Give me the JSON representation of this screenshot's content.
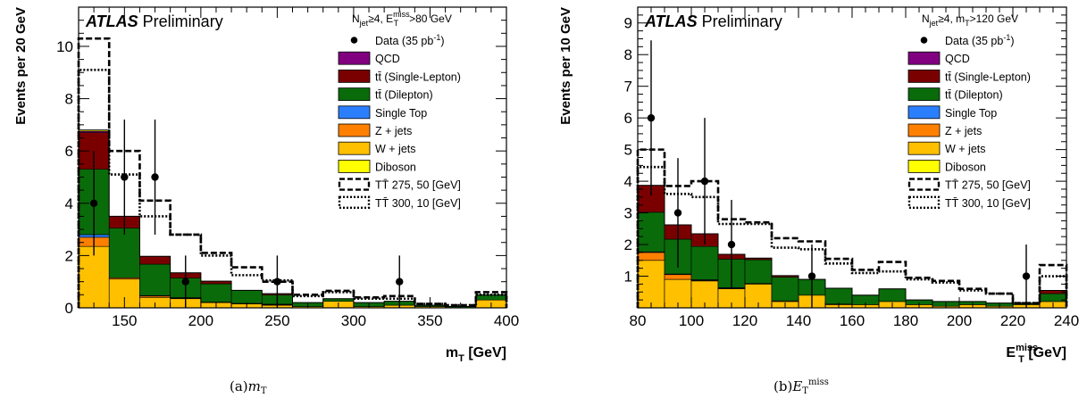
{
  "colors": {
    "qcd": "#800080",
    "ttbar_single_lepton": "#7a0000",
    "ttbar_dilepton": "#0a6b0a",
    "single_top": "#2b7fff",
    "z_jets": "#ff8000",
    "w_jets": "#ffc000",
    "diboson": "#ffff00",
    "data": "#000000"
  },
  "chart_data": [
    {
      "type": "bar",
      "panel_label": "(a)",
      "caption_var": "m",
      "caption_sub": "T",
      "experiment": "ATLAS",
      "status": "Preliminary",
      "selection": {
        "main": "N",
        "sub1": "jet",
        "mid": "≥4, E",
        "sub2": "T",
        "sup2": "miss",
        "tail": ">80 GeV"
      },
      "ylabel": "Events per 20 GeV",
      "xlabel_main": "m",
      "xlabel_sub": "T",
      "xlabel_tail": " [GeV]",
      "xlim": [
        120,
        400
      ],
      "ylim": [
        0,
        11.5
      ],
      "xticks": [
        150,
        200,
        250,
        300,
        350,
        400
      ],
      "yticks": [
        0,
        2,
        4,
        6,
        8,
        10
      ],
      "bin_edges": [
        120,
        140,
        160,
        180,
        200,
        220,
        240,
        260,
        280,
        300,
        320,
        340,
        360,
        380,
        400
      ],
      "stack": [
        {
          "key": "w_jets",
          "values": [
            2.35,
            1.1,
            0.4,
            0.35,
            0.2,
            0.15,
            0.1,
            0.05,
            0.25,
            0.05,
            0.1,
            0.05,
            0.0,
            0.3
          ]
        },
        {
          "key": "z_jets",
          "values": [
            0.35,
            0.05,
            0.05,
            0.02,
            0.02,
            0.02,
            0.02,
            0.0,
            0.0,
            0.0,
            0.0,
            0.0,
            0.0,
            0.0
          ]
        },
        {
          "key": "single_top",
          "values": [
            0.1,
            0.0,
            0.02,
            0.02,
            0.0,
            0.0,
            0.02,
            0.0,
            0.0,
            0.0,
            0.0,
            0.0,
            0.0,
            0.0
          ]
        },
        {
          "key": "ttbar_dilepton",
          "values": [
            2.5,
            1.9,
            1.2,
            0.75,
            0.7,
            0.5,
            0.35,
            0.15,
            0.1,
            0.15,
            0.15,
            0.05,
            0.05,
            0.2
          ]
        },
        {
          "key": "ttbar_single_lepton",
          "values": [
            1.4,
            0.45,
            0.3,
            0.2,
            0.1,
            0.0,
            0.05,
            0.0,
            0.0,
            0.0,
            0.0,
            0.0,
            0.0,
            0.0
          ]
        },
        {
          "key": "qcd",
          "values": [
            0.05,
            0.0,
            0.0,
            0.0,
            0.0,
            0.0,
            0.0,
            0.0,
            0.0,
            0.0,
            0.0,
            0.0,
            0.0,
            0.0
          ]
        },
        {
          "key": "diboson",
          "values": [
            0.05,
            0.0,
            0.0,
            0.0,
            0.0,
            0.0,
            0.0,
            0.0,
            0.0,
            0.0,
            0.0,
            0.0,
            0.0,
            0.0
          ]
        }
      ],
      "signals": [
        {
          "key": "tt_275_50",
          "style": "dashed",
          "values": [
            10.3,
            6.0,
            4.1,
            2.8,
            2.1,
            1.55,
            1.0,
            0.5,
            0.65,
            0.4,
            0.45,
            0.15,
            0.1,
            0.6
          ]
        },
        {
          "key": "tt_300_10",
          "style": "dotted",
          "values": [
            9.1,
            5.1,
            3.5,
            2.8,
            2.0,
            1.25,
            1.05,
            0.45,
            0.6,
            0.35,
            0.35,
            0.15,
            0.1,
            0.5
          ]
        }
      ],
      "data_points": [
        {
          "x": 130,
          "y": 4,
          "err_lo": 2.0,
          "err_hi": 2.0
        },
        {
          "x": 150,
          "y": 5,
          "err_lo": 2.2,
          "err_hi": 2.2
        },
        {
          "x": 170,
          "y": 5,
          "err_lo": 2.2,
          "err_hi": 2.2
        },
        {
          "x": 190,
          "y": 1,
          "err_lo": 1.0,
          "err_hi": 1.0
        },
        {
          "x": 250,
          "y": 1,
          "err_lo": 1.0,
          "err_hi": 1.0
        },
        {
          "x": 330,
          "y": 1,
          "err_lo": 1.0,
          "err_hi": 1.0
        }
      ]
    },
    {
      "type": "bar",
      "panel_label": "(b)",
      "caption_var": "E",
      "caption_sub": "T",
      "caption_sup": "miss",
      "experiment": "ATLAS",
      "status": "Preliminary",
      "selection": {
        "main": "N",
        "sub1": "jet",
        "mid": "≥4, m",
        "sub2": "T",
        "sup2": "",
        "tail": ">120 GeV"
      },
      "ylabel": "Events per 10 GeV",
      "xlabel_main": "E",
      "xlabel_sub": "T",
      "xlabel_sup": "miss",
      "xlabel_tail": " [GeV]",
      "xlim": [
        80,
        240
      ],
      "ylim": [
        0,
        9.5
      ],
      "xticks": [
        80,
        100,
        120,
        140,
        160,
        180,
        200,
        220,
        240
      ],
      "yticks": [
        1,
        2,
        3,
        4,
        5,
        6,
        7,
        8,
        9
      ],
      "bin_edges": [
        80,
        90,
        100,
        110,
        120,
        130,
        140,
        150,
        160,
        170,
        180,
        190,
        200,
        210,
        220,
        230,
        240
      ],
      "stack": [
        {
          "key": "w_jets",
          "values": [
            1.5,
            0.9,
            0.85,
            0.6,
            0.75,
            0.2,
            0.4,
            0.1,
            0.1,
            0.2,
            0.1,
            0.05,
            0.1,
            0.05,
            0.1,
            0.2
          ]
        },
        {
          "key": "z_jets",
          "values": [
            0.25,
            0.15,
            0.02,
            0.02,
            0.02,
            0.02,
            0.0,
            0.02,
            0.0,
            0.0,
            0.0,
            0.0,
            0.0,
            0.0,
            0.0,
            0.0
          ]
        },
        {
          "key": "single_top",
          "values": [
            0.02,
            0.02,
            0.02,
            0.02,
            0.0,
            0.0,
            0.0,
            0.0,
            0.0,
            0.0,
            0.0,
            0.0,
            0.0,
            0.0,
            0.0,
            0.0
          ]
        },
        {
          "key": "ttbar_dilepton",
          "values": [
            1.25,
            1.1,
            1.05,
            0.9,
            0.75,
            0.75,
            0.5,
            0.5,
            0.3,
            0.4,
            0.15,
            0.15,
            0.1,
            0.1,
            0.05,
            0.25
          ]
        },
        {
          "key": "ttbar_single_lepton",
          "values": [
            0.85,
            0.45,
            0.4,
            0.15,
            0.05,
            0.05,
            0.0,
            0.0,
            0.0,
            0.0,
            0.0,
            0.0,
            0.0,
            0.0,
            0.0,
            0.1
          ]
        },
        {
          "key": "qcd",
          "values": [
            0.0,
            0.0,
            0.0,
            0.0,
            0.0,
            0.0,
            0.0,
            0.0,
            0.0,
            0.0,
            0.0,
            0.0,
            0.0,
            0.0,
            0.0,
            0.0
          ]
        },
        {
          "key": "diboson",
          "values": [
            0.0,
            0.0,
            0.0,
            0.0,
            0.0,
            0.0,
            0.0,
            0.0,
            0.0,
            0.0,
            0.0,
            0.0,
            0.0,
            0.0,
            0.0,
            0.0
          ]
        }
      ],
      "signals": [
        {
          "key": "tt_275_50",
          "style": "dashed",
          "values": [
            5.0,
            3.85,
            4.0,
            2.8,
            2.7,
            2.2,
            2.1,
            1.55,
            1.2,
            1.45,
            0.95,
            0.85,
            0.6,
            0.45,
            0.15,
            1.35
          ]
        },
        {
          "key": "tt_300_10",
          "style": "dotted",
          "values": [
            4.45,
            3.6,
            3.5,
            2.65,
            2.65,
            1.9,
            1.85,
            1.4,
            1.1,
            1.15,
            0.9,
            0.8,
            0.55,
            0.45,
            0.15,
            1.0
          ]
        }
      ],
      "data_points": [
        {
          "x": 85,
          "y": 6,
          "err_lo": 2.45,
          "err_hi": 2.45
        },
        {
          "x": 95,
          "y": 3,
          "err_lo": 1.73,
          "err_hi": 1.73
        },
        {
          "x": 105,
          "y": 4,
          "err_lo": 2.0,
          "err_hi": 2.0
        },
        {
          "x": 115,
          "y": 2,
          "err_lo": 1.41,
          "err_hi": 1.41
        },
        {
          "x": 145,
          "y": 1,
          "err_lo": 1.0,
          "err_hi": 1.0
        },
        {
          "x": 225,
          "y": 1,
          "err_lo": 1.0,
          "err_hi": 1.0
        }
      ]
    }
  ],
  "legend": [
    {
      "key": "data",
      "kind": "marker",
      "label": "Data (35 pb",
      "sup": "-1",
      "tail": ")"
    },
    {
      "key": "qcd",
      "kind": "box",
      "label": "QCD"
    },
    {
      "key": "ttbar_single_lepton",
      "kind": "box",
      "label": "tt̄ (Single-Lepton)"
    },
    {
      "key": "ttbar_dilepton",
      "kind": "box",
      "label": "tt̄ (Dilepton)"
    },
    {
      "key": "single_top",
      "kind": "box",
      "label": "Single Top"
    },
    {
      "key": "z_jets",
      "kind": "box",
      "label": "Z + jets"
    },
    {
      "key": "w_jets",
      "kind": "box",
      "label": "W + jets"
    },
    {
      "key": "diboson",
      "kind": "box",
      "label": "Diboson"
    },
    {
      "key": "tt_275_50",
      "kind": "dashed",
      "label": "TT̄ 275, 50 [GeV]"
    },
    {
      "key": "tt_300_10",
      "kind": "dotted",
      "label": "TT̄ 300, 10 [GeV]"
    }
  ]
}
